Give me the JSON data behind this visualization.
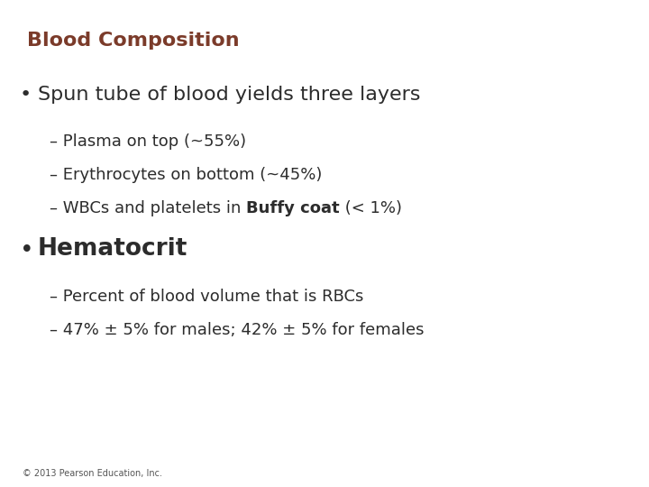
{
  "title": "Blood Composition",
  "title_color": "#7B3B2A",
  "title_fontsize": 16,
  "background_color": "#FFFFFF",
  "bullet1": "Spun tube of blood yields three layers",
  "bullet1_fontsize": 16,
  "sub1a": "– Plasma on top (~55%)",
  "sub1b": "– Erythrocytes on bottom (~45%)",
  "sub1c_plain": "– WBCs and platelets in ",
  "sub1c_bold": "Buffy coat",
  "sub1c_end": " (< 1%)",
  "sub_fontsize": 13,
  "bullet2_bold": "Hematocrit",
  "bullet2_fontsize": 19,
  "sub2a": "– Percent of blood volume that is RBCs",
  "sub2b": "– 47% ± 5% for males; 42% ± 5% for females",
  "text_color": "#2C2C2C",
  "bullet_color": "#2C2C2C",
  "footer": "© 2013 Pearson Education, Inc.",
  "footer_fontsize": 7,
  "footer_color": "#555555"
}
